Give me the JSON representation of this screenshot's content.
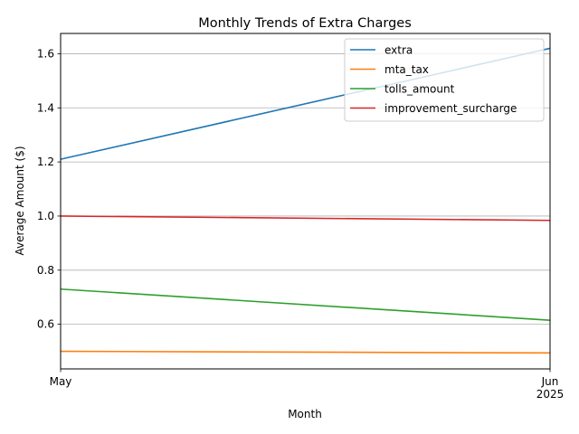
{
  "chart_data": {
    "type": "line",
    "title": "Monthly Trends of Extra Charges",
    "xlabel": "Month",
    "ylabel": "Average Amount ($)",
    "x": [
      "May",
      "Jun"
    ],
    "x_tick_labels": [
      {
        "label": "May",
        "sublabel": ""
      },
      {
        "label": "Jun",
        "sublabel": "2025"
      }
    ],
    "ylim": [
      0.435,
      1.675
    ],
    "y_ticks": [
      0.6,
      0.8,
      1.0,
      1.2,
      1.4,
      1.6
    ],
    "y_tick_labels": [
      "0.6",
      "0.8",
      "1.0",
      "1.2",
      "1.4",
      "1.6"
    ],
    "grid": "horizontal",
    "legend_position": "top-right",
    "series": [
      {
        "name": "extra",
        "color": "#1f77b4",
        "values": [
          1.21,
          1.62
        ]
      },
      {
        "name": "mta_tax",
        "color": "#ff7f0e",
        "values": [
          0.5,
          0.494
        ]
      },
      {
        "name": "tolls_amount",
        "color": "#2ca02c",
        "values": [
          0.73,
          0.615
        ]
      },
      {
        "name": "improvement_surcharge",
        "color": "#d62728",
        "values": [
          1.0,
          0.984
        ]
      }
    ]
  }
}
